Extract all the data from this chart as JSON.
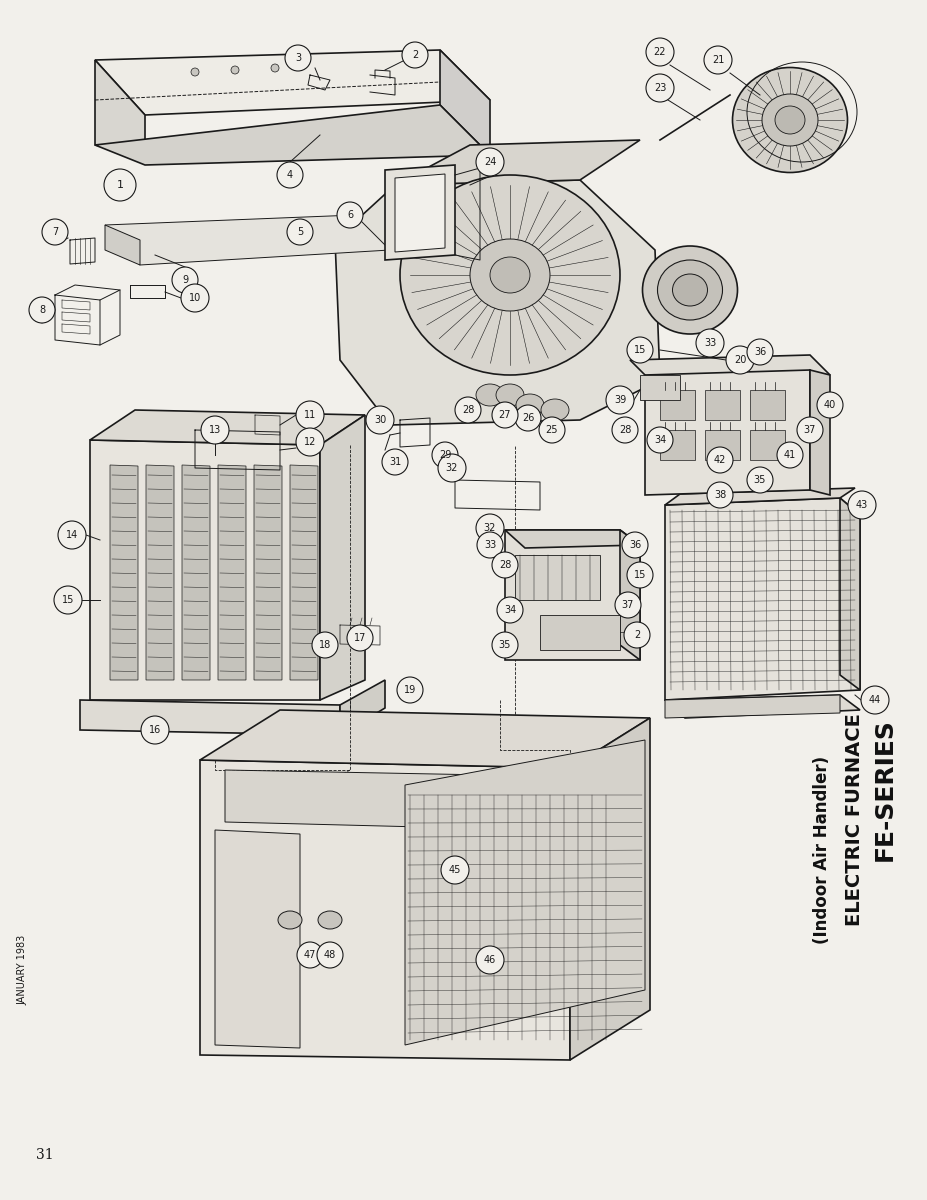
{
  "title_line1": "FE-SERIES",
  "title_line2": "ELECTRIC FURNACE",
  "title_line3": "(Indoor Air Handler)",
  "page_number": "31",
  "date_text": "JANUARY 1983",
  "bg_color": "#f2f0eb",
  "line_color": "#1a1a1a",
  "text_color": "#1a1a1a",
  "title_color": "#111111"
}
